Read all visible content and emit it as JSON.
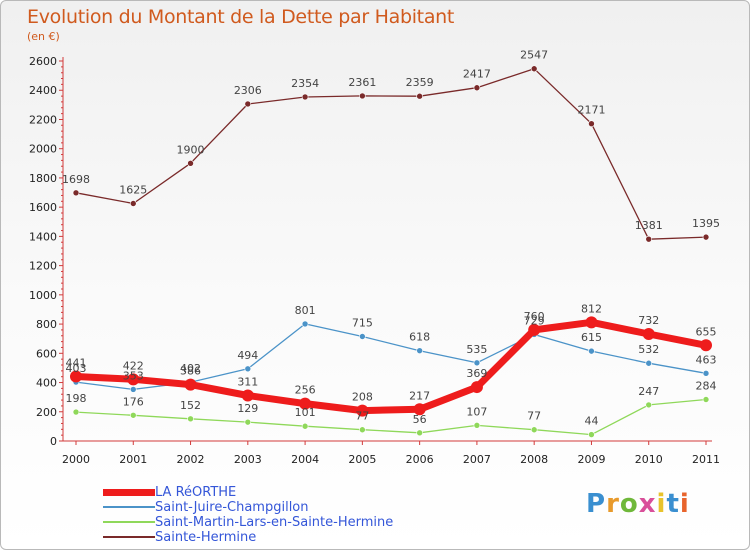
{
  "title": "Evolution du Montant de la Dette par Habitant",
  "subtitle": "(en €)",
  "logo": {
    "text": "Proxiti",
    "colors": [
      "#3a8fd0",
      "#e89a2c",
      "#6fb83a",
      "#d94f9a",
      "#e8c32c",
      "#3a8fd0",
      "#e8642c"
    ]
  },
  "chart_data": {
    "type": "line",
    "title": "Evolution du Montant de la Dette par Habitant",
    "ylabel": "(en €)",
    "xlabel": "",
    "x": [
      "2000",
      "2001",
      "2002",
      "2003",
      "2004",
      "2005",
      "2006",
      "2007",
      "2008",
      "2009",
      "2010",
      "2011"
    ],
    "yticks": [
      0,
      200,
      400,
      600,
      800,
      1000,
      1200,
      1400,
      1600,
      1800,
      2000,
      2200,
      2400,
      2600
    ],
    "ylim": [
      0,
      2600
    ],
    "grid": false,
    "legend": "bottom-left",
    "series": [
      {
        "name": "LA RéORTHE",
        "values": [
          441,
          422,
          386,
          311,
          256,
          208,
          217,
          369,
          760,
          812,
          732,
          655
        ],
        "labels": [
          "441",
          "422",
          "386",
          "311",
          "256",
          "208",
          "217",
          "369",
          "760",
          "812",
          "732",
          "655"
        ],
        "color": "#ee1c1c",
        "width": 7,
        "marker": 6
      },
      {
        "name": "Saint-Juire-Champgillon",
        "values": [
          403,
          353,
          402,
          494,
          801,
          715,
          618,
          535,
          729,
          615,
          532,
          463
        ],
        "labels": [
          "403",
          "353",
          "402",
          "494",
          "801",
          "715",
          "618",
          "535",
          "729",
          "615",
          "532",
          "463"
        ],
        "color": "#4b93c8",
        "width": 1.3,
        "marker": 3
      },
      {
        "name": "Saint-Martin-Lars-en-Sainte-Hermine",
        "values": [
          198,
          176,
          152,
          129,
          101,
          77,
          56,
          107,
          77,
          44,
          247,
          284
        ],
        "labels": [
          "198",
          "176",
          "152",
          "129",
          "101",
          "77",
          "56",
          "107",
          "77",
          "44",
          "247",
          "284"
        ],
        "color": "#8fd85a",
        "width": 1.3,
        "marker": 3
      },
      {
        "name": "Sainte-Hermine",
        "values": [
          1698,
          1625,
          1900,
          2306,
          2354,
          2361,
          2359,
          2417,
          2547,
          2171,
          1381,
          1395
        ],
        "labels": [
          "1698",
          "1625",
          "1900",
          "2306",
          "2354",
          "2361",
          "2359",
          "2417",
          "2547",
          "2171",
          "1381",
          "1395"
        ],
        "color": "#7a2a2a",
        "width": 1.3,
        "marker": 3
      }
    ]
  }
}
